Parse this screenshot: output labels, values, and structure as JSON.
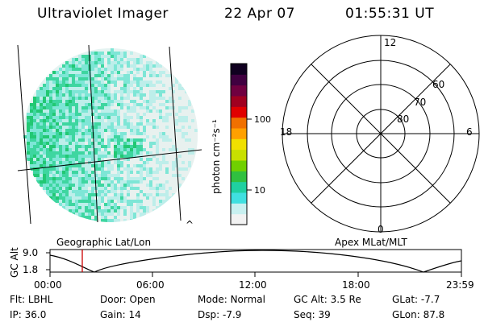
{
  "header": {
    "instrument": "Ultraviolet Imager",
    "date": "22 Apr 07",
    "time": "01:55:31 UT"
  },
  "image_panel": {
    "label": "Geographic Lat/Lon",
    "corner_mark": "^"
  },
  "colorbar": {
    "unit_label": "photon cm⁻²s⁻¹",
    "ticks": [
      "100",
      "10"
    ],
    "scale": "log",
    "colors": [
      "#f2f2f2",
      "#c8f0f0",
      "#40e0e0",
      "#20d0a0",
      "#30c040",
      "#70d000",
      "#c8e000",
      "#f0e000",
      "#ffa000",
      "#f07000",
      "#e00000",
      "#a00020",
      "#700040",
      "#400040",
      "#100020"
    ]
  },
  "polar_panel": {
    "label": "Apex MLat/MLT",
    "hour_labels": {
      "top": "12",
      "right": "6",
      "bottom": "0",
      "left": "18"
    },
    "lat_labels": [
      "60",
      "70",
      "80"
    ]
  },
  "altitude_plot": {
    "ylabel": "GC Alt",
    "yticks": [
      "9.0",
      "1.8"
    ],
    "xticks": [
      "00:00",
      "06:00",
      "12:00",
      "18:00",
      "23:59"
    ],
    "marker_color": "#cc0000"
  },
  "status": {
    "flt_label": "Flt:",
    "flt_value": "LBHL",
    "ip_label": "IP:",
    "ip_value": "36.0",
    "door_label": "Door:",
    "door_value": "Open",
    "gain_label": "Gain:",
    "gain_value": "14",
    "mode_label": "Mode:",
    "mode_value": "Normal",
    "dsp_label": "Dsp:",
    "dsp_value": "-7.9",
    "gcalt_label": "GC Alt:",
    "gcalt_value": "3.5 Re",
    "seq_label": "Seq:",
    "seq_value": "39",
    "glat_label": "GLat:",
    "glat_value": "-7.7",
    "glon_label": "GLon:",
    "glon_value": "87.8"
  }
}
